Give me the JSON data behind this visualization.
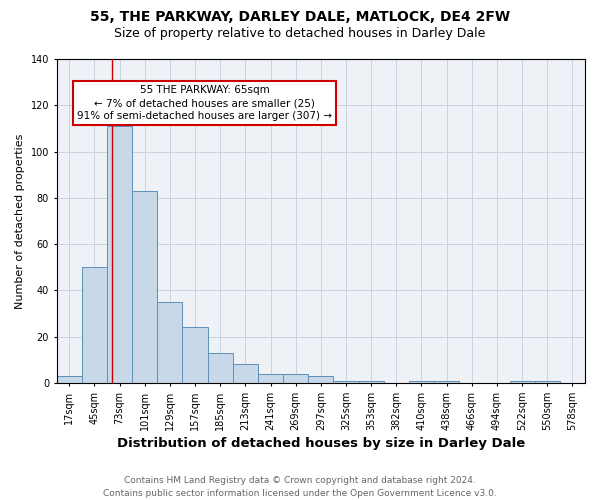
{
  "title1": "55, THE PARKWAY, DARLEY DALE, MATLOCK, DE4 2FW",
  "title2": "Size of property relative to detached houses in Darley Dale",
  "xlabel": "Distribution of detached houses by size in Darley Dale",
  "ylabel": "Number of detached properties",
  "footer1": "Contains HM Land Registry data © Crown copyright and database right 2024.",
  "footer2": "Contains public sector information licensed under the Open Government Licence v3.0.",
  "bin_labels": [
    "17sqm",
    "45sqm",
    "73sqm",
    "101sqm",
    "129sqm",
    "157sqm",
    "185sqm",
    "213sqm",
    "241sqm",
    "269sqm",
    "297sqm",
    "325sqm",
    "353sqm",
    "382sqm",
    "410sqm",
    "438sqm",
    "466sqm",
    "494sqm",
    "522sqm",
    "550sqm",
    "578sqm"
  ],
  "bar_values": [
    3,
    50,
    111,
    83,
    35,
    24,
    13,
    8,
    4,
    4,
    3,
    1,
    1,
    0,
    1,
    1,
    0,
    0,
    1,
    1,
    0
  ],
  "bar_color": "#c8d8e8",
  "bar_edge_color": "#6090b8",
  "annotation_text": "55 THE PARKWAY: 65sqm\n← 7% of detached houses are smaller (25)\n91% of semi-detached houses are larger (307) →",
  "annotation_box_color": "#ffffff",
  "annotation_box_edge": "#cc0000",
  "ylim": [
    0,
    140
  ],
  "grid_color": "#c8d4e0",
  "background_color": "#eef2f6",
  "title1_fontsize": 10,
  "title2_fontsize": 9,
  "axis_xlabel_fontsize": 9.5,
  "axis_ylabel_fontsize": 8,
  "tick_fontsize": 7,
  "annotation_fontsize": 7.5,
  "footer_fontsize": 6.5,
  "footer_color": "#666666"
}
